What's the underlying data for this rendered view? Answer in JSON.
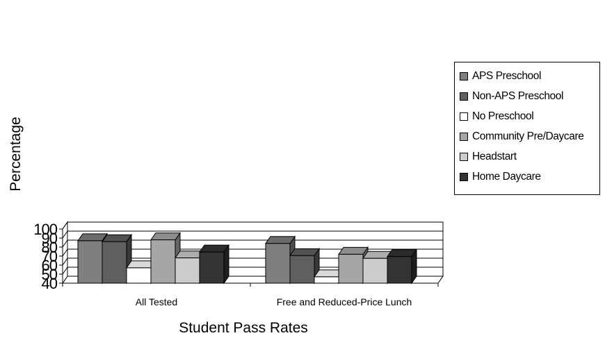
{
  "chart_data": {
    "type": "bar",
    "three_d": true,
    "categories": [
      "All Tested",
      "Free and Reduced-Price Lunch"
    ],
    "series": [
      {
        "name": "APS Preschool",
        "color": "#7f7f7f",
        "values": [
          87,
          84
        ]
      },
      {
        "name": "Non-APS Preschool",
        "color": "#5f5f5f",
        "values": [
          86,
          70.5
        ]
      },
      {
        "name": "No Preschool",
        "color": "#ffffff",
        "values": [
          57,
          47
        ]
      },
      {
        "name": "Community Pre/Daycare",
        "color": "#a6a6a6",
        "values": [
          88,
          72
        ]
      },
      {
        "name": "Headstart",
        "color": "#cccccc",
        "values": [
          68,
          67.5
        ]
      },
      {
        "name": "Home Daycare",
        "color": "#333333",
        "values": [
          74.5,
          69.5
        ]
      }
    ],
    "title": "",
    "xlabel": "Student Pass Rates",
    "ylabel": "Percentage",
    "ylim": [
      40,
      100
    ],
    "yticks": [
      40,
      50,
      60,
      70,
      80,
      90,
      100
    ],
    "grid": true,
    "legend": "right"
  }
}
